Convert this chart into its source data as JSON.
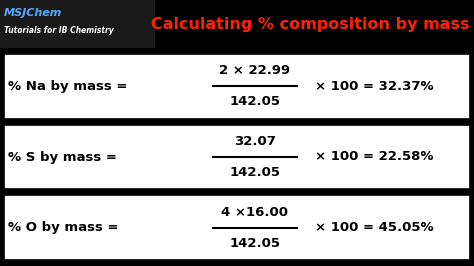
{
  "bg_color": "#000000",
  "box_bg": "#ffffff",
  "box_border": "#000000",
  "title": "Calculating % composition by mass",
  "title_color": "#ff2200",
  "title_fontsize": 11.5,
  "logo_line1": "MSJChem",
  "logo_line2": "Tutorials for IB Chemistry",
  "logo_color1": "#55aaff",
  "logo_color2": "#ffffff",
  "rows": [
    {
      "label": "% Na by mass =",
      "numerator": "2 × 22.99",
      "denominator": "142.05",
      "result": "× 100 = 32.37%"
    },
    {
      "label": "% S by mass =",
      "numerator": "32.07",
      "denominator": "142.05",
      "result": "× 100 = 22.58%"
    },
    {
      "label": "% O by mass =",
      "numerator": "4 ×16.00",
      "denominator": "142.05",
      "result": "× 100 = 45.05%"
    }
  ]
}
